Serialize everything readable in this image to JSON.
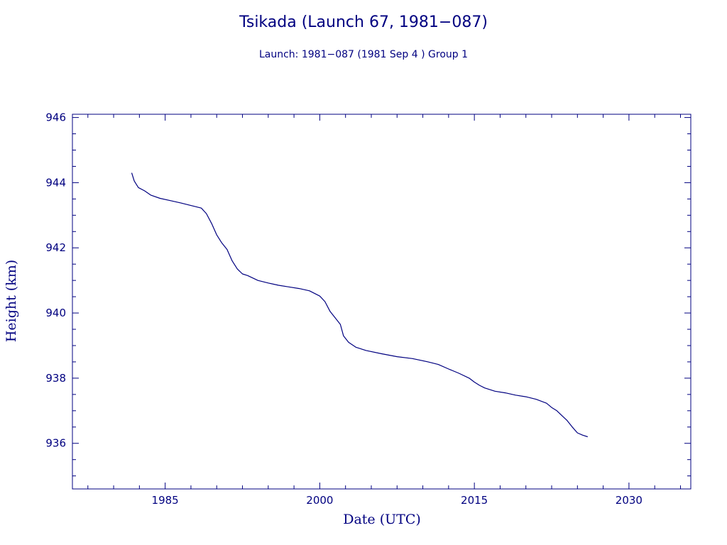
{
  "chart_data": {
    "type": "line",
    "title": "Tsikada (Launch 67, 1981−087)",
    "subtitle": "Launch: 1981−087  (1981 Sep  4 )  Group 1",
    "xlabel": "Date (UTC)",
    "ylabel": "Height (km)",
    "xlim": [
      1976.0,
      2036.0
    ],
    "ylim": [
      934.6,
      946.1
    ],
    "x_ticks": [
      1985,
      2000,
      2015,
      2030
    ],
    "y_ticks": [
      936,
      938,
      940,
      942,
      944,
      946
    ],
    "x_minor_step": 2.5,
    "y_minor_step": 0.5,
    "grid": false,
    "legend": "none",
    "color": "#000080",
    "series": [
      {
        "x": [
          1981.75,
          1982.0,
          1982.4,
          1983.0,
          1983.6,
          1984.5,
          1985.5,
          1986.5,
          1987.5,
          1988.5,
          1989.0,
          1989.5,
          1990.0,
          1990.5,
          1991.0,
          1991.5,
          1992.0,
          1992.5,
          1993.0,
          1994.0,
          1995.0,
          1996.0,
          1997.0,
          1998.0,
          1999.0,
          2000.0,
          2000.5,
          2001.0,
          2001.5,
          2002.0,
          2002.3,
          2002.8,
          2003.5,
          2004.5,
          2006.0,
          2007.5,
          2009.0,
          2010.5,
          2011.5,
          2012.5,
          2013.5,
          2014.5,
          2015.0,
          2015.5,
          2016.0,
          2017.0,
          2018.0,
          2019.0,
          2020.0,
          2021.0,
          2022.0,
          2022.5,
          2023.0,
          2023.5,
          2024.0,
          2024.5,
          2025.0,
          2025.5,
          2026.0
        ],
        "y": [
          944.3,
          944.05,
          943.85,
          943.75,
          943.62,
          943.52,
          943.45,
          943.38,
          943.3,
          943.22,
          943.05,
          942.75,
          942.4,
          942.15,
          941.95,
          941.6,
          941.35,
          941.2,
          941.15,
          941.0,
          940.92,
          940.85,
          940.8,
          940.75,
          940.68,
          940.52,
          940.35,
          940.05,
          939.85,
          939.65,
          939.3,
          939.1,
          938.95,
          938.85,
          938.75,
          938.66,
          938.6,
          938.5,
          938.42,
          938.28,
          938.15,
          938.0,
          937.88,
          937.78,
          937.7,
          937.6,
          937.55,
          937.48,
          937.43,
          937.35,
          937.23,
          937.1,
          937.0,
          936.85,
          936.7,
          936.5,
          936.32,
          936.25,
          936.2
        ]
      }
    ]
  }
}
